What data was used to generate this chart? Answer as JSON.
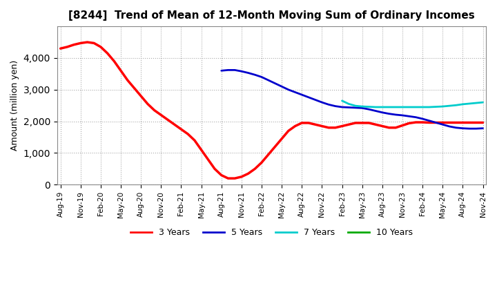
{
  "title": "[8244]  Trend of Mean of 12-Month Moving Sum of Ordinary Incomes",
  "ylabel": "Amount (million yen)",
  "background_color": "#ffffff",
  "plot_bg_color": "#ffffff",
  "grid_color": "#aaaaaa",
  "ylim": [
    0,
    5000
  ],
  "yticks": [
    0,
    1000,
    2000,
    3000,
    4000
  ],
  "series": {
    "3 Years": {
      "color": "#ff0000",
      "data": [
        4300,
        4350,
        4420,
        4470,
        4500,
        4470,
        4350,
        4150,
        3900,
        3600,
        3300,
        3050,
        2800,
        2550,
        2350,
        2200,
        2050,
        1900,
        1750,
        1600,
        1400,
        1100,
        800,
        500,
        300,
        200,
        200,
        250,
        350,
        500,
        700,
        950,
        1200,
        1450,
        1700,
        1850,
        1950,
        1950,
        1900,
        1850,
        1800,
        1800,
        1850,
        1900,
        1950,
        1950,
        1950,
        1900,
        1850,
        1800,
        1800,
        1870,
        1940,
        1970,
        1970,
        1960,
        1960,
        1960,
        1960,
        1960,
        1960,
        1960,
        1960,
        1960
      ]
    },
    "5 Years": {
      "color": "#0000cc",
      "data": [
        null,
        null,
        null,
        null,
        null,
        null,
        null,
        null,
        null,
        null,
        null,
        null,
        null,
        null,
        null,
        null,
        null,
        null,
        null,
        null,
        null,
        null,
        null,
        null,
        3600,
        3620,
        3620,
        3580,
        3530,
        3470,
        3400,
        3300,
        3200,
        3100,
        3000,
        2920,
        2840,
        2760,
        2680,
        2600,
        2530,
        2480,
        2450,
        2440,
        2430,
        2420,
        2380,
        2330,
        2280,
        2240,
        2210,
        2190,
        2160,
        2130,
        2080,
        2020,
        1960,
        1900,
        1840,
        1800,
        1780,
        1770,
        1770,
        1780
      ]
    },
    "7 Years": {
      "color": "#00cccc",
      "data": [
        null,
        null,
        null,
        null,
        null,
        null,
        null,
        null,
        null,
        null,
        null,
        null,
        null,
        null,
        null,
        null,
        null,
        null,
        null,
        null,
        null,
        null,
        null,
        null,
        null,
        null,
        null,
        null,
        null,
        null,
        null,
        null,
        null,
        null,
        null,
        null,
        null,
        null,
        null,
        null,
        null,
        null,
        2650,
        2550,
        2490,
        2470,
        2460,
        2450,
        2450,
        2450,
        2450,
        2450,
        2450,
        2450,
        2450,
        2450,
        2460,
        2470,
        2490,
        2510,
        2540,
        2560,
        2580,
        2600
      ]
    },
    "10 Years": {
      "color": "#00aa00",
      "data": [
        null,
        null,
        null,
        null,
        null,
        null,
        null,
        null,
        null,
        null,
        null,
        null,
        null,
        null,
        null,
        null,
        null,
        null,
        null,
        null,
        null,
        null,
        null,
        null,
        null,
        null,
        null,
        null,
        null,
        null,
        null,
        null,
        null,
        null,
        null,
        null,
        null,
        null,
        null,
        null,
        null,
        null,
        null,
        null,
        null,
        null,
        null,
        null,
        null,
        null,
        null,
        null,
        null,
        null,
        null,
        null,
        null,
        null,
        null,
        null,
        null,
        null,
        null,
        null
      ]
    }
  },
  "x_tick_labels": [
    "Aug-19",
    "Nov-19",
    "Feb-20",
    "May-20",
    "Aug-20",
    "Nov-20",
    "Feb-21",
    "May-21",
    "Aug-21",
    "Nov-21",
    "Feb-22",
    "May-22",
    "Aug-22",
    "Nov-22",
    "Feb-23",
    "May-23",
    "Aug-23",
    "Nov-23",
    "Feb-24",
    "May-24",
    "Aug-24",
    "Nov-24"
  ],
  "legend_labels": [
    "3 Years",
    "5 Years",
    "7 Years",
    "10 Years"
  ],
  "legend_colors": [
    "#ff0000",
    "#0000cc",
    "#00cccc",
    "#00aa00"
  ]
}
